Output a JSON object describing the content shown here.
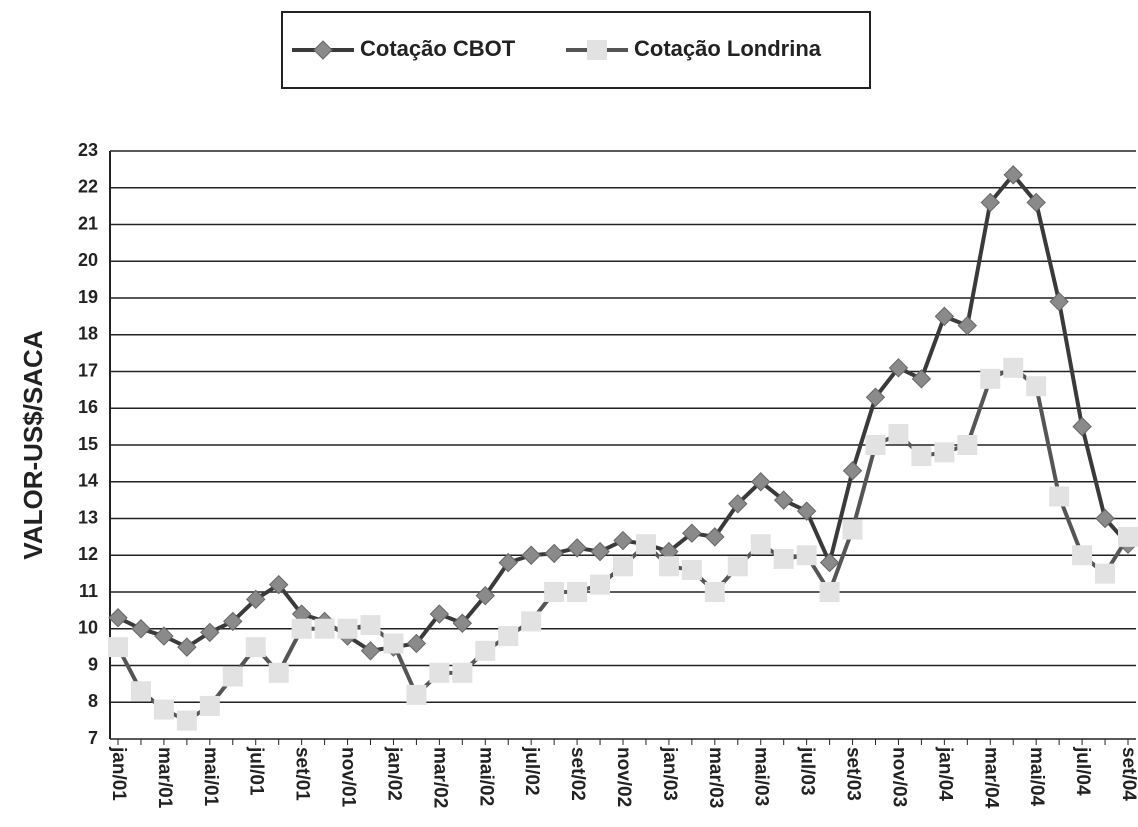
{
  "chart_data": {
    "type": "line",
    "ylabel": "VALOR-US$/SACA",
    "categories": [
      "jan/01",
      null,
      "mar/01",
      null,
      "mai/01",
      null,
      "jul/01",
      null,
      "set/01",
      null,
      "nov/01",
      null,
      "jan/02",
      null,
      "mar/02",
      null,
      "mai/02",
      null,
      "jul/02",
      null,
      "set/02",
      null,
      "nov/02",
      null,
      "jan/03",
      null,
      "mar/03",
      null,
      "mai/03",
      null,
      "jul/03",
      null,
      "set/03",
      null,
      "nov/03",
      null,
      "jan/04",
      null,
      "mar/04",
      null,
      "mai/04",
      null,
      "jul/04",
      null,
      "set/04"
    ],
    "series": [
      {
        "name": "Cotação CBOT",
        "color": "#8a8a8a",
        "line_color": "#3a3a3a",
        "marker": "diamond",
        "values": [
          10.3,
          10.0,
          9.8,
          9.5,
          9.9,
          10.2,
          10.8,
          11.2,
          10.4,
          10.2,
          9.8,
          9.4,
          9.5,
          9.6,
          10.4,
          10.15,
          10.9,
          11.8,
          12.0,
          12.05,
          12.2,
          12.1,
          12.4,
          12.3,
          12.1,
          12.6,
          12.5,
          13.4,
          14.0,
          13.5,
          13.2,
          11.8,
          14.3,
          16.3,
          17.1,
          16.8,
          18.5,
          18.25,
          21.6,
          22.35,
          21.6,
          18.9,
          15.5,
          13.0,
          12.3
        ]
      },
      {
        "name": "Cotação Londrina",
        "color": "#e2e2e2",
        "line_color": "#555555",
        "marker": "square",
        "values": [
          9.5,
          8.3,
          7.8,
          7.5,
          7.9,
          8.7,
          9.5,
          8.8,
          10.0,
          10.0,
          10.0,
          10.1,
          9.6,
          8.2,
          8.8,
          8.8,
          9.4,
          9.8,
          10.2,
          11.0,
          11.0,
          11.2,
          11.7,
          12.3,
          11.7,
          11.6,
          11.0,
          11.7,
          12.3,
          11.9,
          12.0,
          11.0,
          12.7,
          15.0,
          15.3,
          14.7,
          14.8,
          15.0,
          16.8,
          17.1,
          16.6,
          13.6,
          12.0,
          11.5,
          12.5
        ]
      }
    ],
    "ylim": [
      7,
      23
    ],
    "yticks": [
      7,
      8,
      9,
      10,
      11,
      12,
      13,
      14,
      15,
      16,
      17,
      18,
      19,
      20,
      21,
      22,
      23
    ],
    "grid": true,
    "legend": "top"
  }
}
